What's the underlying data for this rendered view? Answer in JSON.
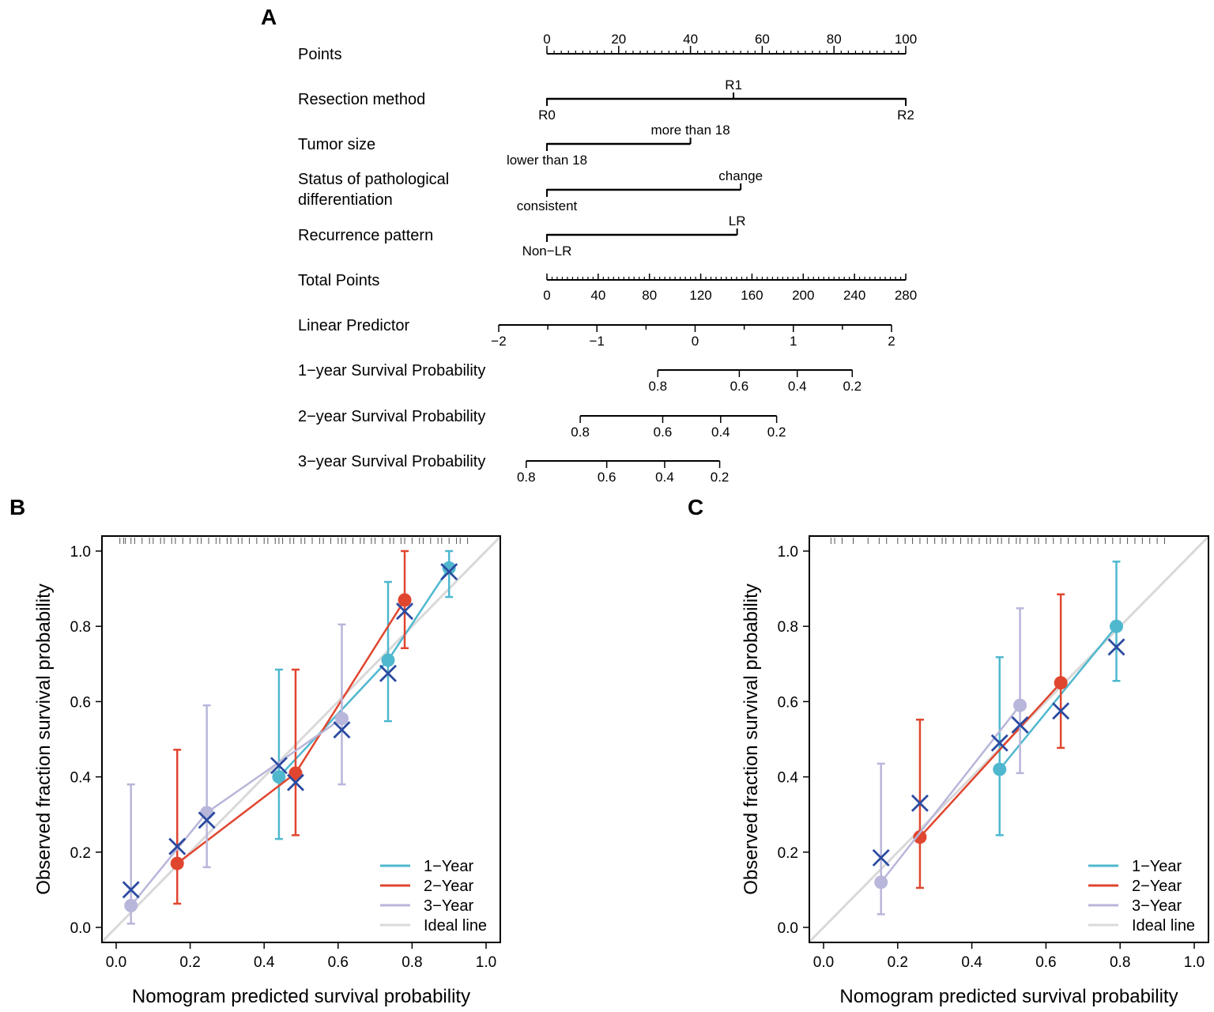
{
  "panel_labels": {
    "a": "A",
    "b": "B",
    "c": "C"
  },
  "colors": {
    "year1": "#4FB8CE",
    "year2": "#E0462F",
    "year3": "#B8B6DA",
    "ideal": "#D9D9D9",
    "observed_marker": "#2B4BA0",
    "axis": "#000000"
  },
  "chart_data": [
    {
      "type": "nomogram",
      "panel": "A",
      "rows": [
        {
          "label": "Points",
          "kind": "points_scale",
          "range": [
            0,
            100
          ],
          "tick_labels": [
            "0",
            "20",
            "40",
            "60",
            "80",
            "100"
          ]
        },
        {
          "label": "Resection method",
          "kind": "factor",
          "levels": [
            {
              "name": "R0",
              "points": 0
            },
            {
              "name": "R1",
              "points": 52
            },
            {
              "name": "R2",
              "points": 100
            }
          ]
        },
        {
          "label": "Tumor size",
          "kind": "factor",
          "levels": [
            {
              "name": "lower than 18",
              "points": 0
            },
            {
              "name": "more than 18",
              "points": 40
            }
          ]
        },
        {
          "label": "Status of pathological differentiation",
          "label_lines": [
            "Status of pathological",
            "differentiation"
          ],
          "kind": "factor",
          "levels": [
            {
              "name": "consistent",
              "points": 0
            },
            {
              "name": "change",
              "points": 54
            }
          ]
        },
        {
          "label": "Recurrence pattern",
          "kind": "factor",
          "levels": [
            {
              "name": "Non−LR",
              "points": 0
            },
            {
              "name": "LR",
              "points": 53
            }
          ]
        },
        {
          "label": "Total Points",
          "kind": "total_scale",
          "range": [
            0,
            280
          ],
          "tick_labels": [
            "0",
            "40",
            "80",
            "120",
            "160",
            "200",
            "240",
            "280"
          ]
        },
        {
          "label": "Linear Predictor",
          "kind": "lp_scale",
          "range": [
            -2,
            2
          ],
          "tick_labels": [
            "−2",
            "−1",
            "0",
            "1",
            "2"
          ]
        },
        {
          "label": "1−year Survival Probability",
          "kind": "prob_scale",
          "lp_at_ticks": [
            -0.38,
            0.45,
            1.04,
            1.6
          ],
          "tick_labels": [
            "0.8",
            "0.6",
            "0.4",
            "0.2"
          ]
        },
        {
          "label": "2−year Survival Probability",
          "kind": "prob_scale",
          "lp_at_ticks": [
            -1.17,
            -0.33,
            0.26,
            0.83
          ],
          "tick_labels": [
            "0.8",
            "0.6",
            "0.4",
            "0.2"
          ]
        },
        {
          "label": "3−year Survival Probability",
          "kind": "prob_scale",
          "lp_at_ticks": [
            -1.72,
            -0.9,
            -0.31,
            0.25
          ],
          "tick_labels": [
            "0.8",
            "0.6",
            "0.4",
            "0.2"
          ]
        }
      ]
    },
    {
      "type": "line",
      "panel": "B",
      "title": "",
      "xlabel": "Nomogram predicted survival probability",
      "ylabel": "Observed fraction survival probability",
      "xlim": [
        0,
        1
      ],
      "ylim": [
        0,
        1
      ],
      "x_tick_labels": [
        "0.0",
        "0.2",
        "0.4",
        "0.6",
        "0.8",
        "1.0"
      ],
      "y_tick_labels": [
        "0.0",
        "0.2",
        "0.4",
        "0.6",
        "0.8",
        "1.0"
      ],
      "rug": [
        0.01,
        0.02,
        0.025,
        0.04,
        0.05,
        0.07,
        0.09,
        0.1,
        0.12,
        0.13,
        0.15,
        0.16,
        0.18,
        0.2,
        0.22,
        0.23,
        0.25,
        0.27,
        0.28,
        0.3,
        0.31,
        0.33,
        0.34,
        0.36,
        0.38,
        0.4,
        0.41,
        0.43,
        0.44,
        0.45,
        0.47,
        0.48,
        0.5,
        0.51,
        0.53,
        0.55,
        0.56,
        0.58,
        0.6,
        0.61,
        0.62,
        0.64,
        0.66,
        0.67,
        0.69,
        0.7,
        0.72,
        0.74,
        0.75,
        0.77,
        0.78,
        0.8,
        0.82,
        0.83,
        0.85,
        0.87,
        0.88,
        0.9,
        0.92,
        0.93,
        0.95
      ],
      "series": [
        {
          "name": "1−Year",
          "color_key": "year1",
          "points": [
            {
              "x": 0.44,
              "y": 0.4,
              "lo": 0.235,
              "hi": 0.685,
              "obs": 0.43
            },
            {
              "x": 0.735,
              "y": 0.71,
              "lo": 0.548,
              "hi": 0.918,
              "obs": 0.675
            },
            {
              "x": 0.9,
              "y": 0.955,
              "lo": 0.878,
              "hi": 1.0,
              "obs": 0.945
            }
          ]
        },
        {
          "name": "2−Year",
          "color_key": "year2",
          "points": [
            {
              "x": 0.165,
              "y": 0.17,
              "lo": 0.063,
              "hi": 0.472,
              "obs": 0.215
            },
            {
              "x": 0.485,
              "y": 0.41,
              "lo": 0.245,
              "hi": 0.685,
              "obs": 0.385
            },
            {
              "x": 0.78,
              "y": 0.87,
              "lo": 0.742,
              "hi": 1.0,
              "obs": 0.84
            }
          ]
        },
        {
          "name": "3−Year",
          "color_key": "year3",
          "points": [
            {
              "x": 0.04,
              "y": 0.058,
              "lo": 0.01,
              "hi": 0.38,
              "obs": 0.1
            },
            {
              "x": 0.245,
              "y": 0.305,
              "lo": 0.16,
              "hi": 0.59,
              "obs": 0.285
            },
            {
              "x": 0.61,
              "y": 0.555,
              "lo": 0.38,
              "hi": 0.805,
              "obs": 0.525
            }
          ]
        }
      ],
      "legend": [
        "1−Year",
        "2−Year",
        "3−Year",
        "Ideal line"
      ],
      "legend_position": "bottom-right"
    },
    {
      "type": "line",
      "panel": "C",
      "title": "",
      "xlabel": "Nomogram predicted survival probability",
      "ylabel": "Observed fraction survival probability",
      "xlim": [
        0,
        1
      ],
      "ylim": [
        0,
        1
      ],
      "x_tick_labels": [
        "0.0",
        "0.2",
        "0.4",
        "0.6",
        "0.8",
        "1.0"
      ],
      "y_tick_labels": [
        "0.0",
        "0.2",
        "0.4",
        "0.6",
        "0.8",
        "1.0"
      ],
      "rug": [
        0.02,
        0.03,
        0.05,
        0.08,
        0.12,
        0.15,
        0.17,
        0.2,
        0.22,
        0.24,
        0.26,
        0.28,
        0.3,
        0.32,
        0.33,
        0.35,
        0.37,
        0.39,
        0.4,
        0.42,
        0.44,
        0.45,
        0.47,
        0.48,
        0.5,
        0.52,
        0.53,
        0.55,
        0.57,
        0.58,
        0.6,
        0.62,
        0.64,
        0.66,
        0.68,
        0.7,
        0.72,
        0.74,
        0.76,
        0.78,
        0.8,
        0.82,
        0.84,
        0.86,
        0.88,
        0.9,
        0.92
      ],
      "series": [
        {
          "name": "1−Year",
          "color_key": "year1",
          "points": [
            {
              "x": 0.475,
              "y": 0.42,
              "lo": 0.245,
              "hi": 0.718,
              "obs": 0.49
            },
            {
              "x": 0.79,
              "y": 0.8,
              "lo": 0.655,
              "hi": 0.972,
              "obs": 0.745
            }
          ]
        },
        {
          "name": "2−Year",
          "color_key": "year2",
          "points": [
            {
              "x": 0.26,
              "y": 0.24,
              "lo": 0.105,
              "hi": 0.552,
              "obs": 0.33
            },
            {
              "x": 0.64,
              "y": 0.65,
              "lo": 0.477,
              "hi": 0.885,
              "obs": 0.575
            }
          ]
        },
        {
          "name": "3−Year",
          "color_key": "year3",
          "points": [
            {
              "x": 0.155,
              "y": 0.12,
              "lo": 0.035,
              "hi": 0.435,
              "obs": 0.185
            },
            {
              "x": 0.53,
              "y": 0.59,
              "lo": 0.41,
              "hi": 0.848,
              "obs": 0.538
            }
          ]
        }
      ],
      "legend": [
        "1−Year",
        "2−Year",
        "3−Year",
        "Ideal line"
      ],
      "legend_position": "bottom-right"
    }
  ]
}
